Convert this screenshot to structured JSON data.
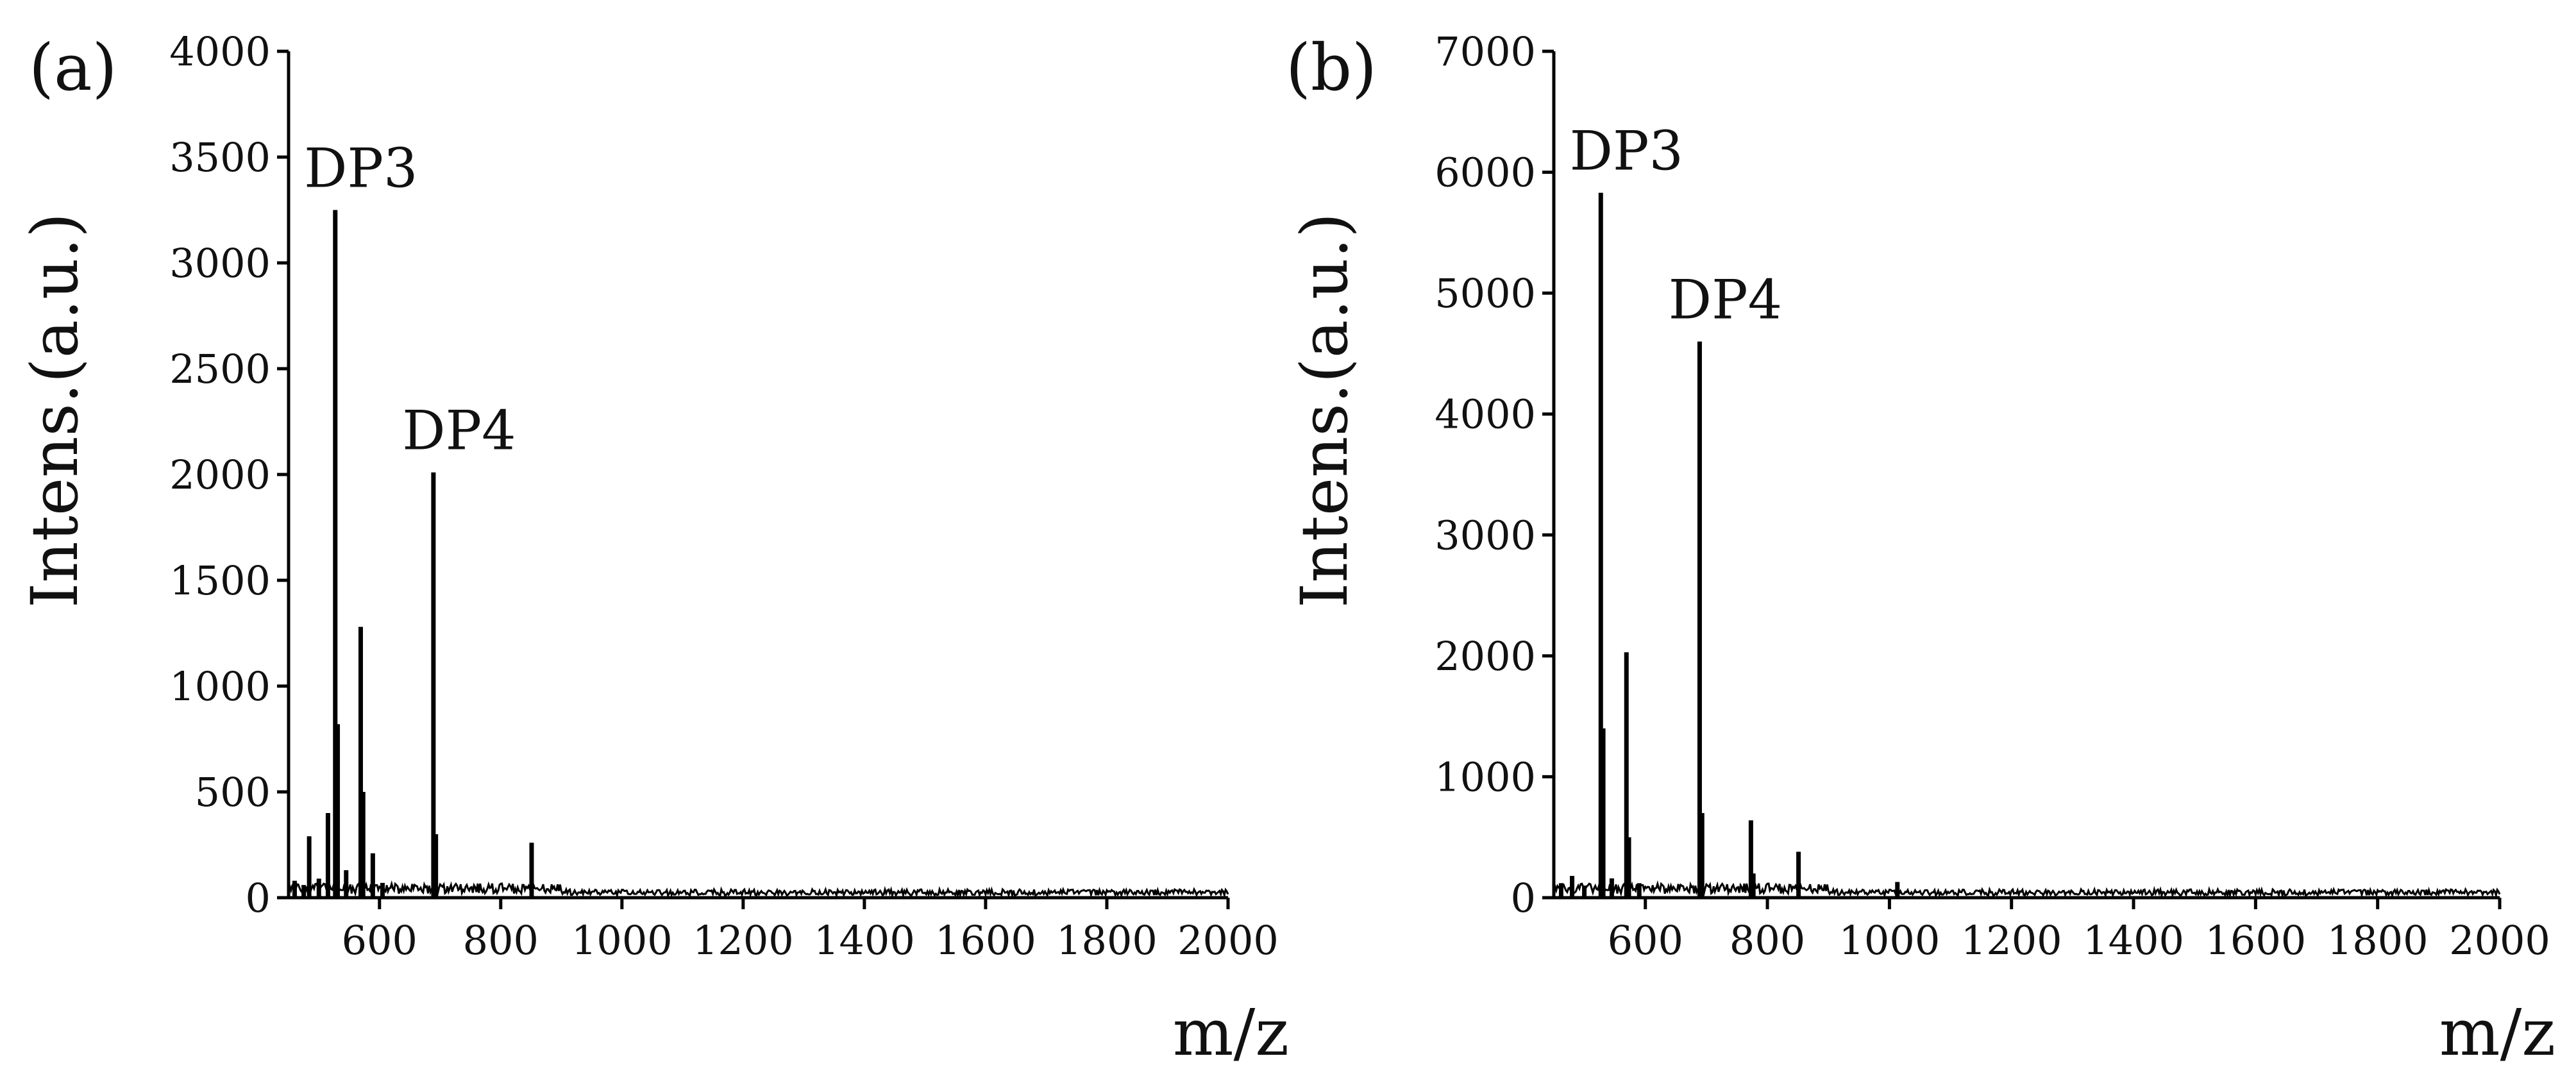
{
  "chart_data": [
    {
      "panel": "(a)",
      "type": "line",
      "title": "",
      "xlabel": "m/z",
      "ylabel": "Intens.(a.u.)",
      "xlim": [
        450,
        2000
      ],
      "ylim": [
        0,
        4000
      ],
      "x_ticks": [
        600,
        800,
        1000,
        1200,
        1400,
        1600,
        1800,
        2000
      ],
      "y_ticks": [
        0,
        500,
        1000,
        1500,
        2000,
        2500,
        3000,
        3500,
        4000
      ],
      "peaks": [
        {
          "x": 460,
          "y": 80
        },
        {
          "x": 475,
          "y": 60
        },
        {
          "x": 484,
          "y": 290
        },
        {
          "x": 500,
          "y": 90
        },
        {
          "x": 515,
          "y": 400
        },
        {
          "x": 527,
          "y": 3250
        },
        {
          "x": 531,
          "y": 820
        },
        {
          "x": 545,
          "y": 130
        },
        {
          "x": 569,
          "y": 1280
        },
        {
          "x": 573,
          "y": 500
        },
        {
          "x": 589,
          "y": 210
        },
        {
          "x": 605,
          "y": 70
        },
        {
          "x": 689,
          "y": 2010
        },
        {
          "x": 693,
          "y": 300
        },
        {
          "x": 851,
          "y": 260
        }
      ],
      "annotations": [
        {
          "text": "DP3",
          "x": 527,
          "y": 3250
        },
        {
          "text": "DP4",
          "x": 689,
          "y": 2010
        }
      ]
    },
    {
      "panel": "(b)",
      "type": "line",
      "title": "",
      "xlabel": "m/z",
      "ylabel": "Intens.(a.u.)",
      "xlim": [
        450,
        2000
      ],
      "ylim": [
        0,
        7000
      ],
      "x_ticks": [
        600,
        800,
        1000,
        1200,
        1400,
        1600,
        1800,
        2000
      ],
      "y_ticks": [
        0,
        1000,
        2000,
        3000,
        4000,
        5000,
        6000,
        7000
      ],
      "peaks": [
        {
          "x": 462,
          "y": 120
        },
        {
          "x": 480,
          "y": 180
        },
        {
          "x": 500,
          "y": 100
        },
        {
          "x": 527,
          "y": 5830
        },
        {
          "x": 531,
          "y": 1400
        },
        {
          "x": 545,
          "y": 160
        },
        {
          "x": 569,
          "y": 2030
        },
        {
          "x": 573,
          "y": 500
        },
        {
          "x": 590,
          "y": 120
        },
        {
          "x": 689,
          "y": 4600
        },
        {
          "x": 693,
          "y": 700
        },
        {
          "x": 773,
          "y": 640
        },
        {
          "x": 777,
          "y": 200
        },
        {
          "x": 851,
          "y": 380
        },
        {
          "x": 1013,
          "y": 130
        }
      ],
      "annotations": [
        {
          "text": "DP3",
          "x": 527,
          "y": 5830
        },
        {
          "text": "DP4",
          "x": 689,
          "y": 4600
        }
      ]
    }
  ]
}
